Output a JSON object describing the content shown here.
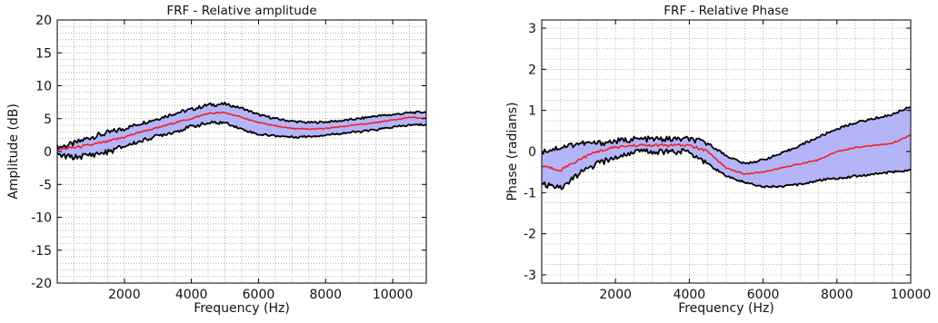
{
  "chart_data": [
    {
      "type": "line",
      "title": "FRF - Relative amplitude",
      "xlabel": "Frequency (Hz)",
      "ylabel": "Amplitude (dB)",
      "xlim": [
        0,
        11000
      ],
      "ylim": [
        -20,
        20
      ],
      "xticks": [
        2000,
        4000,
        6000,
        8000,
        10000
      ],
      "yticks": [
        -20,
        -15,
        -10,
        -5,
        0,
        5,
        10,
        15,
        20
      ],
      "xtick_labels": [
        "2000",
        "4000",
        "6000",
        "8000",
        "10000"
      ],
      "ytick_labels": [
        "-20",
        "-15",
        "-10",
        "-5",
        "0",
        "5",
        "10",
        "15",
        "20"
      ],
      "grid": true,
      "x": [
        0,
        500,
        1000,
        1500,
        2000,
        2500,
        3000,
        3500,
        4000,
        4500,
        5000,
        5500,
        6000,
        6500,
        7000,
        7500,
        8000,
        8500,
        9000,
        9500,
        10000,
        10500,
        11000
      ],
      "series": [
        {
          "role": "upper",
          "color": "#000000",
          "values": [
            0.6,
            1.2,
            2.2,
            2.8,
            3.5,
            4.3,
            5.0,
            5.8,
            6.4,
            7.1,
            7.2,
            6.6,
            5.6,
            5.0,
            4.6,
            4.4,
            4.5,
            4.7,
            5.0,
            5.4,
            5.6,
            5.9,
            6.0
          ]
        },
        {
          "role": "mean",
          "color": "#ee2222",
          "values": [
            0.3,
            0.6,
            1.0,
            1.5,
            2.2,
            3.0,
            3.6,
            4.4,
            5.0,
            5.8,
            5.9,
            5.2,
            4.4,
            3.9,
            3.5,
            3.4,
            3.5,
            3.8,
            4.1,
            4.4,
            4.8,
            5.2,
            5.0
          ]
        },
        {
          "role": "lower",
          "color": "#000000",
          "values": [
            -0.6,
            -0.9,
            -0.5,
            -0.1,
            0.8,
            1.6,
            2.4,
            3.0,
            3.8,
            4.3,
            4.4,
            3.4,
            2.6,
            2.4,
            2.2,
            2.3,
            2.5,
            2.8,
            3.0,
            3.3,
            3.7,
            4.0,
            4.1
          ]
        }
      ],
      "band_color": "#b4b4f8"
    },
    {
      "type": "line",
      "title": "FRF - Relative Phase",
      "xlabel": "Frequency (Hz)",
      "ylabel": "Phase (radians)",
      "xlim": [
        0,
        10000
      ],
      "ylim": [
        -3.2,
        3.2
      ],
      "xticks": [
        2000,
        4000,
        6000,
        8000,
        10000
      ],
      "yticks": [
        -3,
        -2,
        -1,
        0,
        1,
        2,
        3
      ],
      "xtick_labels": [
        "2000",
        "4000",
        "6000",
        "8000",
        "10000"
      ],
      "ytick_labels": [
        "-3",
        "-2",
        "-1",
        "0",
        "1",
        "2",
        "3"
      ],
      "grid": true,
      "x": [
        0,
        500,
        1000,
        1500,
        2000,
        2500,
        3000,
        3500,
        4000,
        4500,
        5000,
        5500,
        6000,
        6500,
        7000,
        7500,
        8000,
        8500,
        9000,
        9500,
        10000
      ],
      "series": [
        {
          "role": "upper",
          "color": "#000000",
          "values": [
            0.0,
            0.1,
            0.2,
            0.2,
            0.25,
            0.3,
            0.3,
            0.3,
            0.3,
            0.2,
            -0.1,
            -0.3,
            -0.2,
            -0.05,
            0.15,
            0.35,
            0.55,
            0.7,
            0.8,
            0.9,
            1.1
          ]
        },
        {
          "role": "mean",
          "color": "#ee2222",
          "values": [
            -0.35,
            -0.45,
            -0.2,
            0.0,
            0.1,
            0.15,
            0.15,
            0.15,
            0.15,
            0.0,
            -0.4,
            -0.55,
            -0.5,
            -0.4,
            -0.3,
            -0.2,
            0.0,
            0.1,
            0.15,
            0.2,
            0.4
          ]
        },
        {
          "role": "lower",
          "color": "#000000",
          "values": [
            -0.8,
            -0.9,
            -0.55,
            -0.3,
            -0.15,
            0.0,
            0.0,
            0.0,
            0.0,
            -0.3,
            -0.6,
            -0.75,
            -0.85,
            -0.85,
            -0.8,
            -0.7,
            -0.65,
            -0.6,
            -0.55,
            -0.5,
            -0.45
          ]
        }
      ],
      "band_color": "#b4b4f8"
    }
  ]
}
